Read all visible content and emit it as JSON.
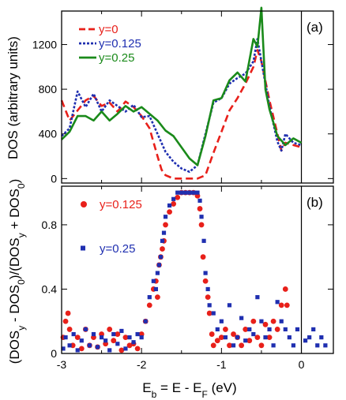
{
  "chart_data": [
    {
      "panel": "(a)",
      "type": "line",
      "ylabel": "DOS (arbitrary units)",
      "xlim": [
        -3,
        0.4
      ],
      "ylim": [
        -40,
        1500
      ],
      "yticks": [
        0,
        400,
        800,
        1200
      ],
      "legend_position": "top-left",
      "series": [
        {
          "name": "y=0",
          "color": "#e8201a",
          "style": "dashed",
          "x": [
            -3.0,
            -2.9,
            -2.8,
            -2.7,
            -2.6,
            -2.5,
            -2.4,
            -2.3,
            -2.2,
            -2.1,
            -2.0,
            -1.9,
            -1.8,
            -1.75,
            -1.7,
            -1.6,
            -1.5,
            -1.4,
            -1.3,
            -1.2,
            -1.1,
            -1.0,
            -0.9,
            -0.8,
            -0.7,
            -0.6,
            -0.55,
            -0.5,
            -0.4,
            -0.3,
            -0.25,
            -0.2,
            -0.1,
            0.0
          ],
          "y": [
            700,
            520,
            610,
            700,
            740,
            650,
            680,
            600,
            690,
            640,
            560,
            450,
            200,
            80,
            30,
            0,
            0,
            0,
            0,
            30,
            230,
            420,
            610,
            720,
            850,
            1000,
            1150,
            1050,
            700,
            400,
            250,
            320,
            300,
            280
          ]
        },
        {
          "name": "y=0.125",
          "color": "#1f2fb0",
          "style": "dotted",
          "x": [
            -3.0,
            -2.9,
            -2.8,
            -2.7,
            -2.6,
            -2.5,
            -2.4,
            -2.3,
            -2.2,
            -2.1,
            -2.0,
            -1.9,
            -1.8,
            -1.7,
            -1.6,
            -1.5,
            -1.4,
            -1.3,
            -1.2,
            -1.1,
            -1.0,
            -0.9,
            -0.8,
            -0.7,
            -0.6,
            -0.55,
            -0.5,
            -0.4,
            -0.3,
            -0.25,
            -0.2,
            -0.1,
            0.0
          ],
          "y": [
            380,
            450,
            780,
            640,
            760,
            600,
            700,
            650,
            600,
            660,
            550,
            560,
            400,
            240,
            150,
            90,
            60,
            120,
            400,
            680,
            720,
            850,
            900,
            940,
            1050,
            1250,
            1050,
            650,
            330,
            250,
            400,
            320,
            300
          ]
        },
        {
          "name": "y=0.25",
          "color": "#1a8a1a",
          "style": "solid",
          "x": [
            -3.0,
            -2.9,
            -2.8,
            -2.7,
            -2.6,
            -2.5,
            -2.4,
            -2.3,
            -2.2,
            -2.1,
            -2.0,
            -1.9,
            -1.8,
            -1.7,
            -1.6,
            -1.5,
            -1.4,
            -1.3,
            -1.2,
            -1.1,
            -1.0,
            -0.9,
            -0.8,
            -0.7,
            -0.6,
            -0.55,
            -0.5,
            -0.45,
            -0.4,
            -0.3,
            -0.2,
            -0.1,
            0.0
          ],
          "y": [
            350,
            420,
            560,
            560,
            520,
            600,
            520,
            580,
            650,
            600,
            640,
            580,
            520,
            430,
            380,
            280,
            180,
            120,
            380,
            700,
            720,
            880,
            950,
            870,
            1250,
            1180,
            1530,
            800,
            620,
            380,
            300,
            360,
            320
          ]
        }
      ]
    },
    {
      "panel": "(b)",
      "type": "scatter",
      "ylabel": "(DOS_y - DOS_0)/(DOS_y + DOS_0)",
      "xlabel": "E_b = E - E_F (eV)",
      "xlim": [
        -3,
        0.4
      ],
      "ylim": [
        0,
        1.04
      ],
      "xticks": [
        -3,
        -2,
        -1,
        0
      ],
      "yticks": [
        0,
        0.4,
        0.8
      ],
      "legend_position": "top-left",
      "series": [
        {
          "name": "y=0.125",
          "color": "#e8201a",
          "marker": "circle",
          "x": [
            -2.98,
            -2.95,
            -2.92,
            -2.9,
            -2.86,
            -2.8,
            -2.75,
            -2.7,
            -2.65,
            -2.6,
            -2.55,
            -2.5,
            -2.45,
            -2.4,
            -2.35,
            -2.3,
            -2.25,
            -2.2,
            -2.15,
            -2.1,
            -2.05,
            -2.0,
            -1.95,
            -1.9,
            -1.85,
            -1.82,
            -1.8,
            -1.78,
            -1.76,
            -1.74,
            -1.72,
            -1.7,
            -1.65,
            -1.6,
            -1.55,
            -1.5,
            -1.45,
            -1.4,
            -1.35,
            -1.3,
            -1.27,
            -1.25,
            -1.23,
            -1.2,
            -1.17,
            -1.15,
            -1.12,
            -1.1,
            -1.05,
            -1.0,
            -0.95,
            -0.9,
            -0.85,
            -0.8,
            -0.75,
            -0.7,
            -0.65,
            -0.6,
            -0.55,
            -0.5,
            -0.45,
            -0.4,
            -0.35,
            -0.3,
            -0.25,
            -0.2,
            -0.18
          ],
          "y": [
            0.1,
            0.2,
            0.25,
            0.15,
            0.05,
            0.1,
            0.03,
            0.15,
            0.05,
            0.1,
            0.04,
            0.12,
            0.06,
            0.15,
            0.08,
            0.12,
            0.02,
            0.1,
            0.05,
            0.06,
            0.03,
            0.12,
            0.2,
            0.3,
            0.4,
            0.45,
            0.35,
            0.55,
            0.6,
            0.65,
            0.7,
            0.8,
            0.88,
            0.93,
            0.97,
            1.0,
            1.0,
            1.0,
            1.0,
            0.98,
            0.9,
            0.8,
            0.6,
            0.45,
            0.35,
            0.25,
            0.12,
            0.05,
            0.08,
            0.1,
            0.15,
            0.05,
            0.12,
            0.1,
            0.05,
            0.15,
            0.08,
            0.2,
            0.1,
            0.05,
            0.18,
            0.1,
            0.2,
            0.15,
            0.3,
            0.4,
            0.3
          ]
        },
        {
          "name": "y=0.25",
          "color": "#1f2fb0",
          "marker": "square",
          "x": [
            -2.98,
            -2.95,
            -2.9,
            -2.85,
            -2.8,
            -2.75,
            -2.7,
            -2.65,
            -2.6,
            -2.55,
            -2.5,
            -2.45,
            -2.4,
            -2.35,
            -2.3,
            -2.25,
            -2.2,
            -2.15,
            -2.1,
            -2.05,
            -2.0,
            -1.95,
            -1.9,
            -1.85,
            -1.82,
            -1.8,
            -1.78,
            -1.76,
            -1.74,
            -1.72,
            -1.7,
            -1.65,
            -1.6,
            -1.55,
            -1.5,
            -1.45,
            -1.4,
            -1.35,
            -1.3,
            -1.27,
            -1.25,
            -1.22,
            -1.2,
            -1.17,
            -1.15,
            -1.1,
            -1.05,
            -1.0,
            -0.95,
            -0.9,
            -0.85,
            -0.8,
            -0.75,
            -0.7,
            -0.65,
            -0.6,
            -0.55,
            -0.5,
            -0.45,
            -0.4,
            -0.35,
            -0.3,
            -0.25,
            -0.2,
            -0.15,
            -0.1,
            -0.05,
            0.05,
            0.1,
            0.15,
            0.2,
            0.25,
            0.3
          ],
          "y": [
            0.03,
            0.1,
            0.05,
            0.12,
            0.02,
            0.08,
            0.15,
            0.05,
            0.12,
            0.04,
            0.1,
            0.08,
            0.02,
            0.12,
            0.06,
            0.14,
            0.03,
            0.1,
            0.07,
            0.12,
            0.1,
            0.2,
            0.35,
            0.45,
            0.4,
            0.5,
            0.55,
            0.6,
            0.7,
            0.75,
            0.85,
            0.92,
            0.96,
            1.0,
            1.0,
            1.0,
            1.0,
            1.0,
            1.0,
            0.95,
            0.85,
            0.7,
            0.5,
            0.4,
            0.3,
            0.25,
            0.15,
            0.2,
            0.1,
            0.3,
            0.05,
            0.1,
            0.22,
            0.08,
            0.15,
            0.12,
            0.35,
            0.2,
            0.1,
            0.15,
            0.05,
            0.32,
            0.2,
            0.15,
            0.1,
            0.05,
            0.15,
            0.08,
            0.1,
            0.15,
            0.05,
            0.1,
            0.05
          ]
        }
      ]
    }
  ]
}
